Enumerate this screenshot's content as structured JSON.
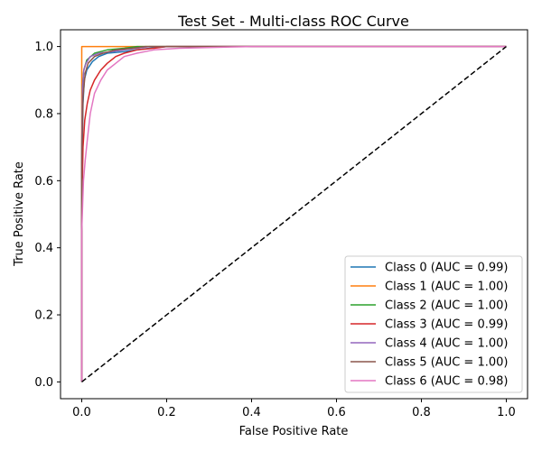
{
  "chart_data": {
    "type": "line",
    "title": "Test Set - Multi-class ROC Curve",
    "xlabel": "False Positive Rate",
    "ylabel": "True Positive Rate",
    "xlim": [
      -0.05,
      1.05
    ],
    "ylim": [
      -0.05,
      1.05
    ],
    "xticks": [
      0.0,
      0.2,
      0.4,
      0.6,
      0.8,
      1.0
    ],
    "yticks": [
      0.0,
      0.2,
      0.4,
      0.6,
      0.8,
      1.0
    ],
    "xtick_labels": [
      "0.0",
      "0.2",
      "0.4",
      "0.6",
      "0.8",
      "1.0"
    ],
    "ytick_labels": [
      "0.0",
      "0.2",
      "0.4",
      "0.6",
      "0.8",
      "1.0"
    ],
    "grid": false,
    "legend_position": "lower-right",
    "series": [
      {
        "name": "Class 0 (AUC = 0.99)",
        "color": "#1f77b4",
        "points": [
          [
            0,
            0
          ],
          [
            0,
            0.6
          ],
          [
            0.003,
            0.83
          ],
          [
            0.006,
            0.9
          ],
          [
            0.012,
            0.93
          ],
          [
            0.025,
            0.955
          ],
          [
            0.04,
            0.97
          ],
          [
            0.06,
            0.98
          ],
          [
            0.1,
            0.985
          ],
          [
            0.13,
            0.99
          ],
          [
            0.16,
            0.995
          ],
          [
            0.2,
            1.0
          ],
          [
            1.0,
            1.0
          ]
        ]
      },
      {
        "name": "Class 1 (AUC = 1.00)",
        "color": "#ff7f0e",
        "points": [
          [
            0,
            0
          ],
          [
            0,
            1.0
          ],
          [
            1.0,
            1.0
          ]
        ]
      },
      {
        "name": "Class 2 (AUC = 1.00)",
        "color": "#2ca02c",
        "points": [
          [
            0,
            0
          ],
          [
            0,
            0.7
          ],
          [
            0.002,
            0.88
          ],
          [
            0.005,
            0.93
          ],
          [
            0.012,
            0.96
          ],
          [
            0.03,
            0.98
          ],
          [
            0.06,
            0.99
          ],
          [
            0.1,
            0.995
          ],
          [
            0.13,
            1.0
          ],
          [
            1.0,
            1.0
          ]
        ]
      },
      {
        "name": "Class 3 (AUC = 0.99)",
        "color": "#d62728",
        "points": [
          [
            0,
            0
          ],
          [
            0,
            0.5
          ],
          [
            0.003,
            0.7
          ],
          [
            0.007,
            0.78
          ],
          [
            0.013,
            0.83
          ],
          [
            0.02,
            0.87
          ],
          [
            0.03,
            0.9
          ],
          [
            0.045,
            0.93
          ],
          [
            0.06,
            0.95
          ],
          [
            0.08,
            0.97
          ],
          [
            0.1,
            0.98
          ],
          [
            0.13,
            0.99
          ],
          [
            0.17,
            0.995
          ],
          [
            0.2,
            1.0
          ],
          [
            1.0,
            1.0
          ]
        ]
      },
      {
        "name": "Class 4 (AUC = 1.00)",
        "color": "#9467bd",
        "points": [
          [
            0,
            0
          ],
          [
            0,
            0.7
          ],
          [
            0.002,
            0.88
          ],
          [
            0.005,
            0.93
          ],
          [
            0.01,
            0.95
          ],
          [
            0.02,
            0.97
          ],
          [
            0.04,
            0.98
          ],
          [
            0.07,
            0.985
          ],
          [
            0.1,
            0.99
          ],
          [
            0.13,
            0.995
          ],
          [
            0.16,
            1.0
          ],
          [
            1.0,
            1.0
          ]
        ]
      },
      {
        "name": "Class 5 (AUC = 1.00)",
        "color": "#8c564b",
        "points": [
          [
            0,
            0
          ],
          [
            0,
            0.65
          ],
          [
            0.003,
            0.85
          ],
          [
            0.008,
            0.92
          ],
          [
            0.015,
            0.95
          ],
          [
            0.03,
            0.97
          ],
          [
            0.05,
            0.98
          ],
          [
            0.08,
            0.99
          ],
          [
            0.12,
            0.995
          ],
          [
            0.15,
            1.0
          ],
          [
            1.0,
            1.0
          ]
        ]
      },
      {
        "name": "Class 6 (AUC = 0.98)",
        "color": "#e377c2",
        "points": [
          [
            0,
            0
          ],
          [
            0,
            0.45
          ],
          [
            0.004,
            0.6
          ],
          [
            0.008,
            0.66
          ],
          [
            0.013,
            0.72
          ],
          [
            0.02,
            0.8
          ],
          [
            0.03,
            0.86
          ],
          [
            0.045,
            0.9
          ],
          [
            0.06,
            0.93
          ],
          [
            0.08,
            0.95
          ],
          [
            0.1,
            0.97
          ],
          [
            0.13,
            0.98
          ],
          [
            0.17,
            0.99
          ],
          [
            0.23,
            0.995
          ],
          [
            0.4,
            1.0
          ],
          [
            1.0,
            1.0
          ]
        ]
      }
    ],
    "reference_line": {
      "style": "dashed",
      "color": "#000000",
      "points": [
        [
          0,
          0
        ],
        [
          1,
          1
        ]
      ]
    }
  }
}
